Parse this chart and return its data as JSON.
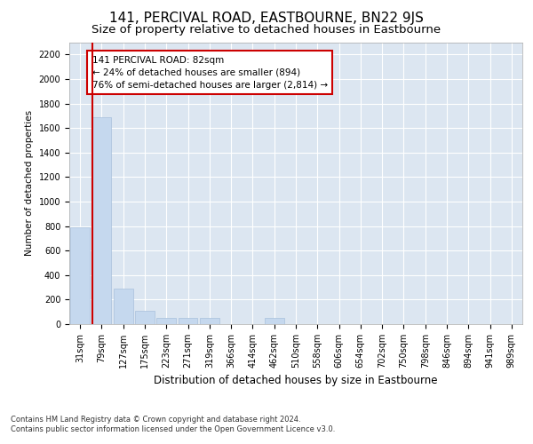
{
  "title": "141, PERCIVAL ROAD, EASTBOURNE, BN22 9JS",
  "subtitle": "Size of property relative to detached houses in Eastbourne",
  "xlabel": "Distribution of detached houses by size in Eastbourne",
  "ylabel": "Number of detached properties",
  "categories": [
    "31sqm",
    "79sqm",
    "127sqm",
    "175sqm",
    "223sqm",
    "271sqm",
    "319sqm",
    "366sqm",
    "414sqm",
    "462sqm",
    "510sqm",
    "558sqm",
    "606sqm",
    "654sqm",
    "702sqm",
    "750sqm",
    "798sqm",
    "846sqm",
    "894sqm",
    "941sqm",
    "989sqm"
  ],
  "values": [
    790,
    1690,
    290,
    110,
    50,
    50,
    50,
    0,
    0,
    50,
    0,
    0,
    0,
    0,
    0,
    0,
    0,
    0,
    0,
    0,
    0
  ],
  "bar_color": "#c5d8ee",
  "bar_edgecolor": "#a8c0dc",
  "vline_color": "#cc0000",
  "annotation_text": "141 PERCIVAL ROAD: 82sqm\n← 24% of detached houses are smaller (894)\n76% of semi-detached houses are larger (2,814) →",
  "annotation_box_edgecolor": "#cc0000",
  "annotation_box_facecolor": "#ffffff",
  "ylim": [
    0,
    2300
  ],
  "yticks": [
    0,
    200,
    400,
    600,
    800,
    1000,
    1200,
    1400,
    1600,
    1800,
    2000,
    2200
  ],
  "footnote": "Contains HM Land Registry data © Crown copyright and database right 2024.\nContains public sector information licensed under the Open Government Licence v3.0.",
  "title_fontsize": 11,
  "subtitle_fontsize": 9.5,
  "xlabel_fontsize": 8.5,
  "ylabel_fontsize": 7.5,
  "tick_fontsize": 7,
  "annotation_fontsize": 7.5,
  "footnote_fontsize": 6,
  "plot_background_color": "#dce6f1"
}
